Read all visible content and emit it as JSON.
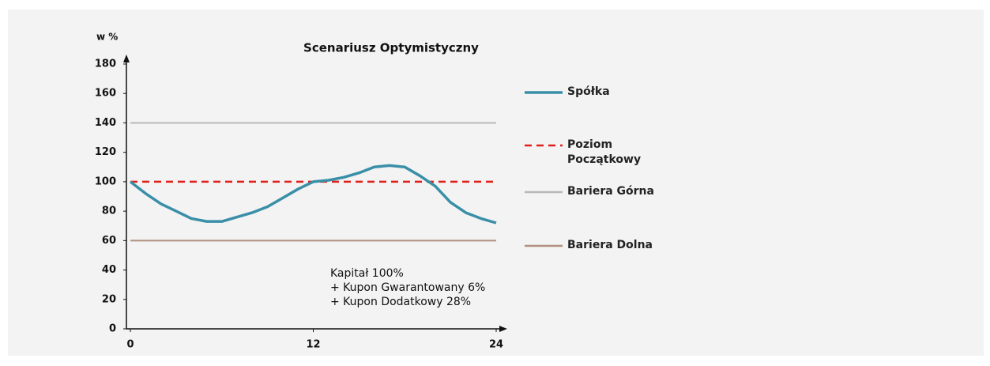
{
  "chart_data": {
    "type": "line",
    "title": "Scenariusz  Optymistyczny",
    "ylabel": "w %",
    "x": [
      0,
      1,
      2,
      3,
      4,
      5,
      6,
      7,
      8,
      9,
      10,
      11,
      12,
      13,
      14,
      15,
      16,
      17,
      18,
      19,
      20,
      21,
      22,
      23,
      24
    ],
    "series": [
      {
        "name": "Spółka",
        "color": "#3a8fa8",
        "values": [
          100,
          92,
          85,
          80,
          75,
          73,
          73,
          76,
          79,
          83,
          89,
          95,
          100,
          101,
          103,
          106,
          110,
          111,
          110,
          104,
          97,
          86,
          79,
          75,
          72
        ]
      }
    ],
    "reference_lines": [
      {
        "name": "Poziom Początkowy",
        "color": "#e0201b",
        "value": 100,
        "dashed": true
      },
      {
        "name": "Bariera Górna",
        "color": "#b8b8b8",
        "value": 140,
        "dashed": false
      },
      {
        "name": "Bariera Dolna",
        "color": "#b09080",
        "value": 60,
        "dashed": false
      }
    ],
    "annotation": [
      "Kapitał 100%",
      "+ Kupon Gwarantowany 6%",
      "+ Kupon Dodatkowy 28%"
    ],
    "xlim": [
      0,
      24
    ],
    "xticks": [
      0,
      12,
      24
    ],
    "ylim": [
      0,
      180
    ],
    "yticks": [
      0,
      20,
      40,
      60,
      80,
      100,
      120,
      140,
      160,
      180
    ]
  }
}
